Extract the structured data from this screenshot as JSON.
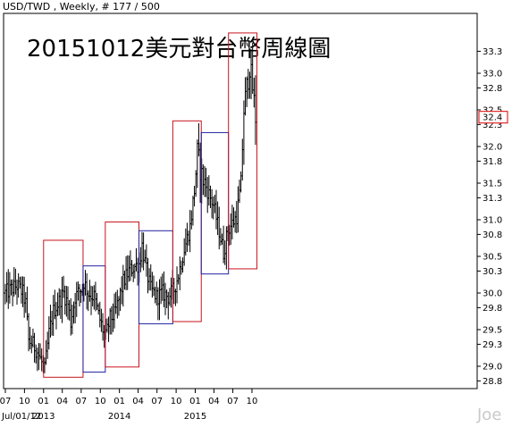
{
  "header": {
    "text": "USD/TWD , Weekly, # 177 / 500"
  },
  "watermark": "Joe",
  "colors": {
    "box_red": "#c8141e",
    "box_blue": "#2323a0",
    "price_box": "#dd0000",
    "bars": "#000000"
  },
  "chart_data": {
    "type": "ohlc",
    "title": "20151012美元對台幣周線圖",
    "xlabel": "",
    "ylabel": "",
    "ylim": [
      28.6,
      33.6
    ],
    "y_ticks": [
      "28.8",
      "29.0",
      "29.3",
      "29.5",
      "29.8",
      "30.0",
      "30.3",
      "30.5",
      "30.8",
      "31.0",
      "31.3",
      "31.5",
      "31.8",
      "32.0",
      "32.3",
      "32.5",
      "32.8",
      "33.0",
      "33.3"
    ],
    "current_price": "32.4",
    "x_start_label": "Jul/01/12",
    "x_ticks": [
      {
        "label": "07",
        "date": "2012-07"
      },
      {
        "label": "10",
        "date": "2012-10"
      },
      {
        "label": "01",
        "date": "2013-01"
      },
      {
        "label": "04",
        "date": "2013-04"
      },
      {
        "label": "07",
        "date": "2013-07"
      },
      {
        "label": "10",
        "date": "2013-10"
      },
      {
        "label": "01",
        "date": "2014-01"
      },
      {
        "label": "04",
        "date": "2014-04"
      },
      {
        "label": "07",
        "date": "2014-07"
      },
      {
        "label": "10",
        "date": "2014-10"
      },
      {
        "label": "01",
        "date": "2015-01"
      },
      {
        "label": "04",
        "date": "2015-04"
      },
      {
        "label": "07",
        "date": "2015-07"
      },
      {
        "label": "10",
        "date": "2015-10"
      }
    ],
    "year_labels": [
      {
        "label": "2013",
        "date": "2013-01"
      },
      {
        "label": "2014",
        "date": "2014-01"
      },
      {
        "label": "2015",
        "date": "2015-01"
      }
    ],
    "path_points": [
      [
        "2012-07-01",
        30.0
      ],
      [
        "2012-07-29",
        30.05
      ],
      [
        "2012-08-26",
        30.1
      ],
      [
        "2012-09-23",
        30.0
      ],
      [
        "2012-10-07",
        29.85
      ],
      [
        "2012-10-21",
        29.35
      ],
      [
        "2012-11-11",
        29.3
      ],
      [
        "2012-12-02",
        29.2
      ],
      [
        "2012-12-23",
        29.05
      ],
      [
        "2013-01-06",
        28.95
      ],
      [
        "2013-01-27",
        29.45
      ],
      [
        "2013-02-17",
        29.75
      ],
      [
        "2013-03-10",
        29.85
      ],
      [
        "2013-04-07",
        30.0
      ],
      [
        "2013-04-28",
        29.85
      ],
      [
        "2013-05-12",
        29.6
      ],
      [
        "2013-06-02",
        29.95
      ],
      [
        "2013-06-30",
        30.05
      ],
      [
        "2013-07-14",
        30.15
      ],
      [
        "2013-08-04",
        30.0
      ],
      [
        "2013-09-01",
        29.95
      ],
      [
        "2013-09-22",
        29.7
      ],
      [
        "2013-10-13",
        29.5
      ],
      [
        "2013-10-27",
        29.4
      ],
      [
        "2013-11-17",
        29.65
      ],
      [
        "2013-12-08",
        29.7
      ],
      [
        "2013-12-29",
        29.9
      ],
      [
        "2014-01-19",
        30.15
      ],
      [
        "2014-02-16",
        30.3
      ],
      [
        "2014-03-09",
        30.35
      ],
      [
        "2014-04-06",
        30.4
      ],
      [
        "2014-04-20",
        30.65
      ],
      [
        "2014-05-11",
        30.3
      ],
      [
        "2014-06-01",
        30.05
      ],
      [
        "2014-06-29",
        29.95
      ],
      [
        "2014-07-27",
        30.0
      ],
      [
        "2014-08-24",
        29.95
      ],
      [
        "2014-09-21",
        30.05
      ],
      [
        "2014-10-12",
        30.25
      ],
      [
        "2014-11-09",
        30.6
      ],
      [
        "2014-12-07",
        30.9
      ],
      [
        "2014-12-28",
        31.4
      ],
      [
        "2015-01-11",
        31.9
      ],
      [
        "2015-02-01",
        31.6
      ],
      [
        "2015-03-01",
        31.4
      ],
      [
        "2015-03-29",
        31.2
      ],
      [
        "2015-04-26",
        30.85
      ],
      [
        "2015-05-17",
        30.55
      ],
      [
        "2015-06-07",
        30.85
      ],
      [
        "2015-06-28",
        30.95
      ],
      [
        "2015-07-19",
        31.05
      ],
      [
        "2015-08-09",
        31.5
      ],
      [
        "2015-08-23",
        32.5
      ],
      [
        "2015-09-06",
        32.8
      ],
      [
        "2015-09-20",
        33.1
      ],
      [
        "2015-10-04",
        32.8
      ],
      [
        "2015-10-18",
        32.4
      ]
    ],
    "annotations": [
      {
        "kind": "box",
        "color": "red",
        "x0": "2013-01-01",
        "x1": "2013-07-10",
        "y0": 28.85,
        "y1": 30.72
      },
      {
        "kind": "box",
        "color": "blue",
        "x0": "2013-07-10",
        "x1": "2013-10-25",
        "y0": 28.92,
        "y1": 30.37
      },
      {
        "kind": "box",
        "color": "red",
        "x0": "2013-10-25",
        "x1": "2014-04-05",
        "y0": 28.99,
        "y1": 30.97
      },
      {
        "kind": "box",
        "color": "blue",
        "x0": "2014-04-05",
        "x1": "2014-09-15",
        "y0": 29.58,
        "y1": 30.85
      },
      {
        "kind": "box",
        "color": "red",
        "x0": "2014-09-15",
        "x1": "2015-01-30",
        "y0": 29.61,
        "y1": 32.35
      },
      {
        "kind": "box",
        "color": "blue",
        "x0": "2015-01-30",
        "x1": "2015-06-10",
        "y0": 30.26,
        "y1": 32.19
      },
      {
        "kind": "box",
        "color": "red",
        "x0": "2015-06-10",
        "x1": "2015-10-25",
        "y0": 30.33,
        "y1": 33.55
      }
    ]
  }
}
